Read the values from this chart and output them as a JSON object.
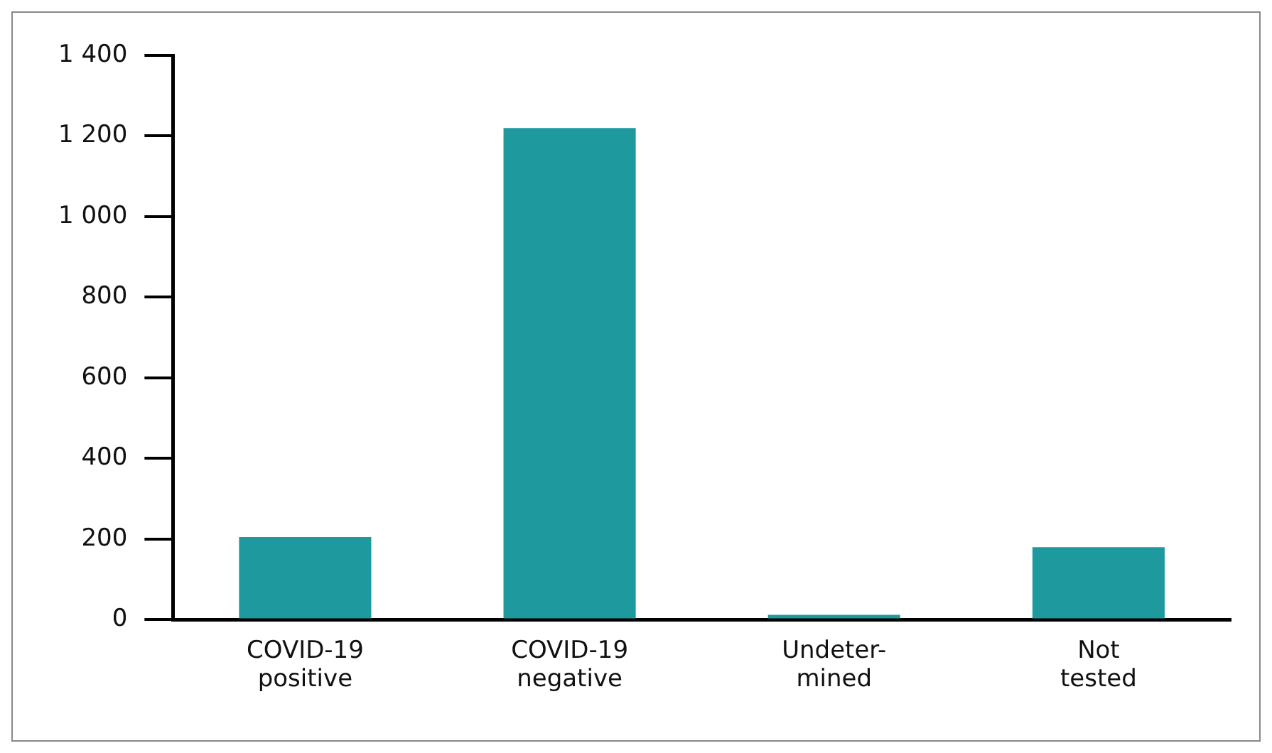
{
  "chart_data": {
    "type": "bar",
    "categories": [
      "COVID-19\npositive",
      "COVID-19\nnegative",
      "Undeter-\nmined",
      "Not\ntested"
    ],
    "values": [
      205,
      1220,
      12,
      180
    ],
    "color": "#1e9a9f",
    "ylim": [
      0,
      1400
    ],
    "yticks": [
      0,
      200,
      400,
      600,
      800,
      {
        "value": 1000,
        "label": "1 000"
      },
      {
        "value": 1200,
        "label": "1 200"
      },
      {
        "value": 1400,
        "label": "1 400"
      }
    ],
    "grid": false,
    "legend": false
  }
}
